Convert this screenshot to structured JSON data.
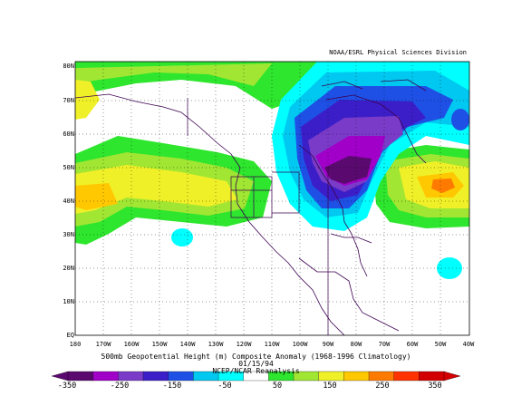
{
  "credit": "NOAA/ESRL Physical Sciences Division",
  "lat_labels": [
    "80N",
    "70N",
    "60N",
    "50N",
    "40N",
    "30N",
    "20N",
    "10N",
    "EQ"
  ],
  "lon_labels": [
    "180",
    "170W",
    "160W",
    "150W",
    "140W",
    "130W",
    "120W",
    "110W",
    "100W",
    "90W",
    "80W",
    "70W",
    "60W",
    "50W",
    "40W"
  ],
  "caption": {
    "line1": "500mb Geopotential Height (m) Composite Anomaly (1968-1996 Climatology)",
    "line2": "01/15/94",
    "line3": "NCEP/NCAR Reanalysis"
  },
  "colorbar": {
    "colors": [
      "#5a0a6e",
      "#a000c8",
      "#7a3cc8",
      "#3c1ec8",
      "#1e50e6",
      "#00c8f0",
      "#00ffff",
      "#ffffff",
      "#2ee62e",
      "#a0e632",
      "#f0f028",
      "#ffc800",
      "#ff7a00",
      "#ff3200",
      "#d20000"
    ],
    "tick_labels": [
      "-350",
      "-250",
      "-150",
      "-50",
      "50",
      "150",
      "250",
      "350"
    ]
  },
  "map": {
    "colors": {
      "neg_low": "#5a0a6e",
      "neg_high": "#3c1ec8",
      "neg_mid": "#1e50e6",
      "neg_soft": "#00c8f0",
      "neg_light": "#00ffff",
      "pos_soft": "#2ee62e",
      "pos_mid": "#a0e632",
      "pos_high": "#f0f028",
      "pos_strong": "#ffc800",
      "pos_max": "#ff7a00",
      "coast": "#3c0050",
      "grid": "#000000"
    }
  }
}
